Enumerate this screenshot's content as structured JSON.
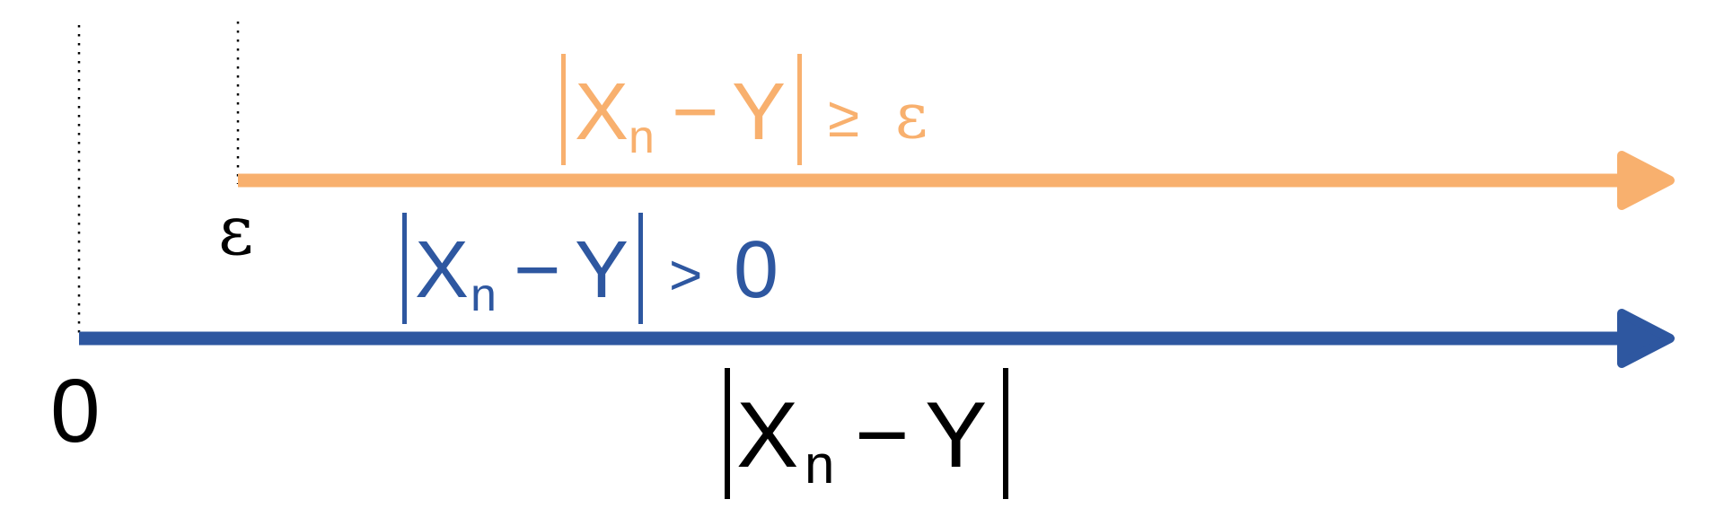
{
  "colors": {
    "orange": "#F8B06E",
    "blue": "#2E57A0",
    "black": "#000000"
  },
  "labels": {
    "origin": "0",
    "epsilon": "ε",
    "orange_expr": {
      "X": "X",
      "sub": "n",
      "minus": "−",
      "Y": "Y",
      "relation": "≥",
      "rhs": "ε"
    },
    "blue_expr": {
      "X": "X",
      "sub": "n",
      "minus": "−",
      "Y": "Y",
      "relation": ">",
      "rhs": "0"
    },
    "axis_expr": {
      "X": "X",
      "sub": "n",
      "minus": "−",
      "Y": "Y"
    }
  }
}
